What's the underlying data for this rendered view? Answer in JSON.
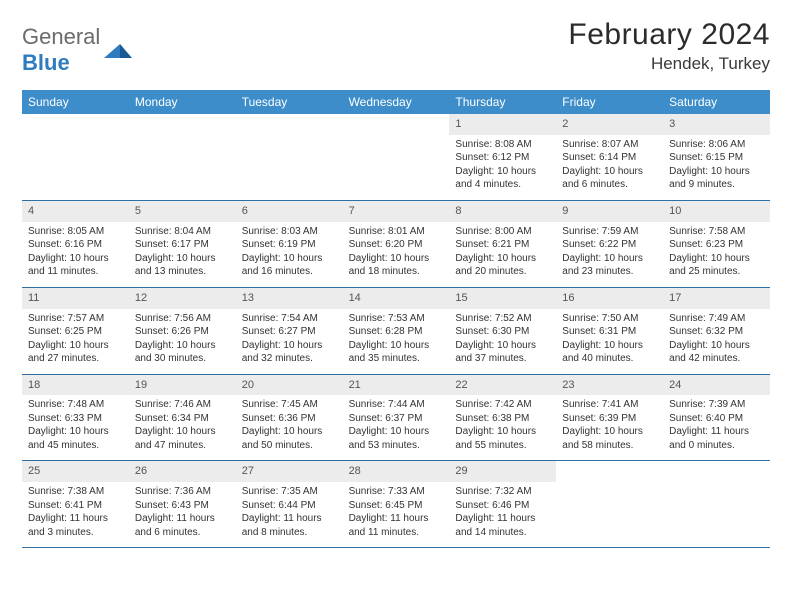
{
  "brand": {
    "part1": "General",
    "part2": "Blue"
  },
  "title": "February 2024",
  "location": "Hendek, Turkey",
  "colors": {
    "header_bg": "#3c8dca",
    "header_text": "#ffffff",
    "daynum_bg": "#ececec",
    "week_border": "#2f6fa3",
    "logo_gray": "#6b6b6b",
    "logo_blue": "#2f7bbf"
  },
  "day_headers": [
    "Sunday",
    "Monday",
    "Tuesday",
    "Wednesday",
    "Thursday",
    "Friday",
    "Saturday"
  ],
  "weeks": [
    [
      {
        "n": "",
        "empty": true
      },
      {
        "n": "",
        "empty": true
      },
      {
        "n": "",
        "empty": true
      },
      {
        "n": "",
        "empty": true
      },
      {
        "n": "1",
        "sunrise": "Sunrise: 8:08 AM",
        "sunset": "Sunset: 6:12 PM",
        "daylight1": "Daylight: 10 hours",
        "daylight2": "and 4 minutes."
      },
      {
        "n": "2",
        "sunrise": "Sunrise: 8:07 AM",
        "sunset": "Sunset: 6:14 PM",
        "daylight1": "Daylight: 10 hours",
        "daylight2": "and 6 minutes."
      },
      {
        "n": "3",
        "sunrise": "Sunrise: 8:06 AM",
        "sunset": "Sunset: 6:15 PM",
        "daylight1": "Daylight: 10 hours",
        "daylight2": "and 9 minutes."
      }
    ],
    [
      {
        "n": "4",
        "sunrise": "Sunrise: 8:05 AM",
        "sunset": "Sunset: 6:16 PM",
        "daylight1": "Daylight: 10 hours",
        "daylight2": "and 11 minutes."
      },
      {
        "n": "5",
        "sunrise": "Sunrise: 8:04 AM",
        "sunset": "Sunset: 6:17 PM",
        "daylight1": "Daylight: 10 hours",
        "daylight2": "and 13 minutes."
      },
      {
        "n": "6",
        "sunrise": "Sunrise: 8:03 AM",
        "sunset": "Sunset: 6:19 PM",
        "daylight1": "Daylight: 10 hours",
        "daylight2": "and 16 minutes."
      },
      {
        "n": "7",
        "sunrise": "Sunrise: 8:01 AM",
        "sunset": "Sunset: 6:20 PM",
        "daylight1": "Daylight: 10 hours",
        "daylight2": "and 18 minutes."
      },
      {
        "n": "8",
        "sunrise": "Sunrise: 8:00 AM",
        "sunset": "Sunset: 6:21 PM",
        "daylight1": "Daylight: 10 hours",
        "daylight2": "and 20 minutes."
      },
      {
        "n": "9",
        "sunrise": "Sunrise: 7:59 AM",
        "sunset": "Sunset: 6:22 PM",
        "daylight1": "Daylight: 10 hours",
        "daylight2": "and 23 minutes."
      },
      {
        "n": "10",
        "sunrise": "Sunrise: 7:58 AM",
        "sunset": "Sunset: 6:23 PM",
        "daylight1": "Daylight: 10 hours",
        "daylight2": "and 25 minutes."
      }
    ],
    [
      {
        "n": "11",
        "sunrise": "Sunrise: 7:57 AM",
        "sunset": "Sunset: 6:25 PM",
        "daylight1": "Daylight: 10 hours",
        "daylight2": "and 27 minutes."
      },
      {
        "n": "12",
        "sunrise": "Sunrise: 7:56 AM",
        "sunset": "Sunset: 6:26 PM",
        "daylight1": "Daylight: 10 hours",
        "daylight2": "and 30 minutes."
      },
      {
        "n": "13",
        "sunrise": "Sunrise: 7:54 AM",
        "sunset": "Sunset: 6:27 PM",
        "daylight1": "Daylight: 10 hours",
        "daylight2": "and 32 minutes."
      },
      {
        "n": "14",
        "sunrise": "Sunrise: 7:53 AM",
        "sunset": "Sunset: 6:28 PM",
        "daylight1": "Daylight: 10 hours",
        "daylight2": "and 35 minutes."
      },
      {
        "n": "15",
        "sunrise": "Sunrise: 7:52 AM",
        "sunset": "Sunset: 6:30 PM",
        "daylight1": "Daylight: 10 hours",
        "daylight2": "and 37 minutes."
      },
      {
        "n": "16",
        "sunrise": "Sunrise: 7:50 AM",
        "sunset": "Sunset: 6:31 PM",
        "daylight1": "Daylight: 10 hours",
        "daylight2": "and 40 minutes."
      },
      {
        "n": "17",
        "sunrise": "Sunrise: 7:49 AM",
        "sunset": "Sunset: 6:32 PM",
        "daylight1": "Daylight: 10 hours",
        "daylight2": "and 42 minutes."
      }
    ],
    [
      {
        "n": "18",
        "sunrise": "Sunrise: 7:48 AM",
        "sunset": "Sunset: 6:33 PM",
        "daylight1": "Daylight: 10 hours",
        "daylight2": "and 45 minutes."
      },
      {
        "n": "19",
        "sunrise": "Sunrise: 7:46 AM",
        "sunset": "Sunset: 6:34 PM",
        "daylight1": "Daylight: 10 hours",
        "daylight2": "and 47 minutes."
      },
      {
        "n": "20",
        "sunrise": "Sunrise: 7:45 AM",
        "sunset": "Sunset: 6:36 PM",
        "daylight1": "Daylight: 10 hours",
        "daylight2": "and 50 minutes."
      },
      {
        "n": "21",
        "sunrise": "Sunrise: 7:44 AM",
        "sunset": "Sunset: 6:37 PM",
        "daylight1": "Daylight: 10 hours",
        "daylight2": "and 53 minutes."
      },
      {
        "n": "22",
        "sunrise": "Sunrise: 7:42 AM",
        "sunset": "Sunset: 6:38 PM",
        "daylight1": "Daylight: 10 hours",
        "daylight2": "and 55 minutes."
      },
      {
        "n": "23",
        "sunrise": "Sunrise: 7:41 AM",
        "sunset": "Sunset: 6:39 PM",
        "daylight1": "Daylight: 10 hours",
        "daylight2": "and 58 minutes."
      },
      {
        "n": "24",
        "sunrise": "Sunrise: 7:39 AM",
        "sunset": "Sunset: 6:40 PM",
        "daylight1": "Daylight: 11 hours",
        "daylight2": "and 0 minutes."
      }
    ],
    [
      {
        "n": "25",
        "sunrise": "Sunrise: 7:38 AM",
        "sunset": "Sunset: 6:41 PM",
        "daylight1": "Daylight: 11 hours",
        "daylight2": "and 3 minutes."
      },
      {
        "n": "26",
        "sunrise": "Sunrise: 7:36 AM",
        "sunset": "Sunset: 6:43 PM",
        "daylight1": "Daylight: 11 hours",
        "daylight2": "and 6 minutes."
      },
      {
        "n": "27",
        "sunrise": "Sunrise: 7:35 AM",
        "sunset": "Sunset: 6:44 PM",
        "daylight1": "Daylight: 11 hours",
        "daylight2": "and 8 minutes."
      },
      {
        "n": "28",
        "sunrise": "Sunrise: 7:33 AM",
        "sunset": "Sunset: 6:45 PM",
        "daylight1": "Daylight: 11 hours",
        "daylight2": "and 11 minutes."
      },
      {
        "n": "29",
        "sunrise": "Sunrise: 7:32 AM",
        "sunset": "Sunset: 6:46 PM",
        "daylight1": "Daylight: 11 hours",
        "daylight2": "and 14 minutes."
      },
      {
        "n": "",
        "empty": true
      },
      {
        "n": "",
        "empty": true
      }
    ]
  ]
}
